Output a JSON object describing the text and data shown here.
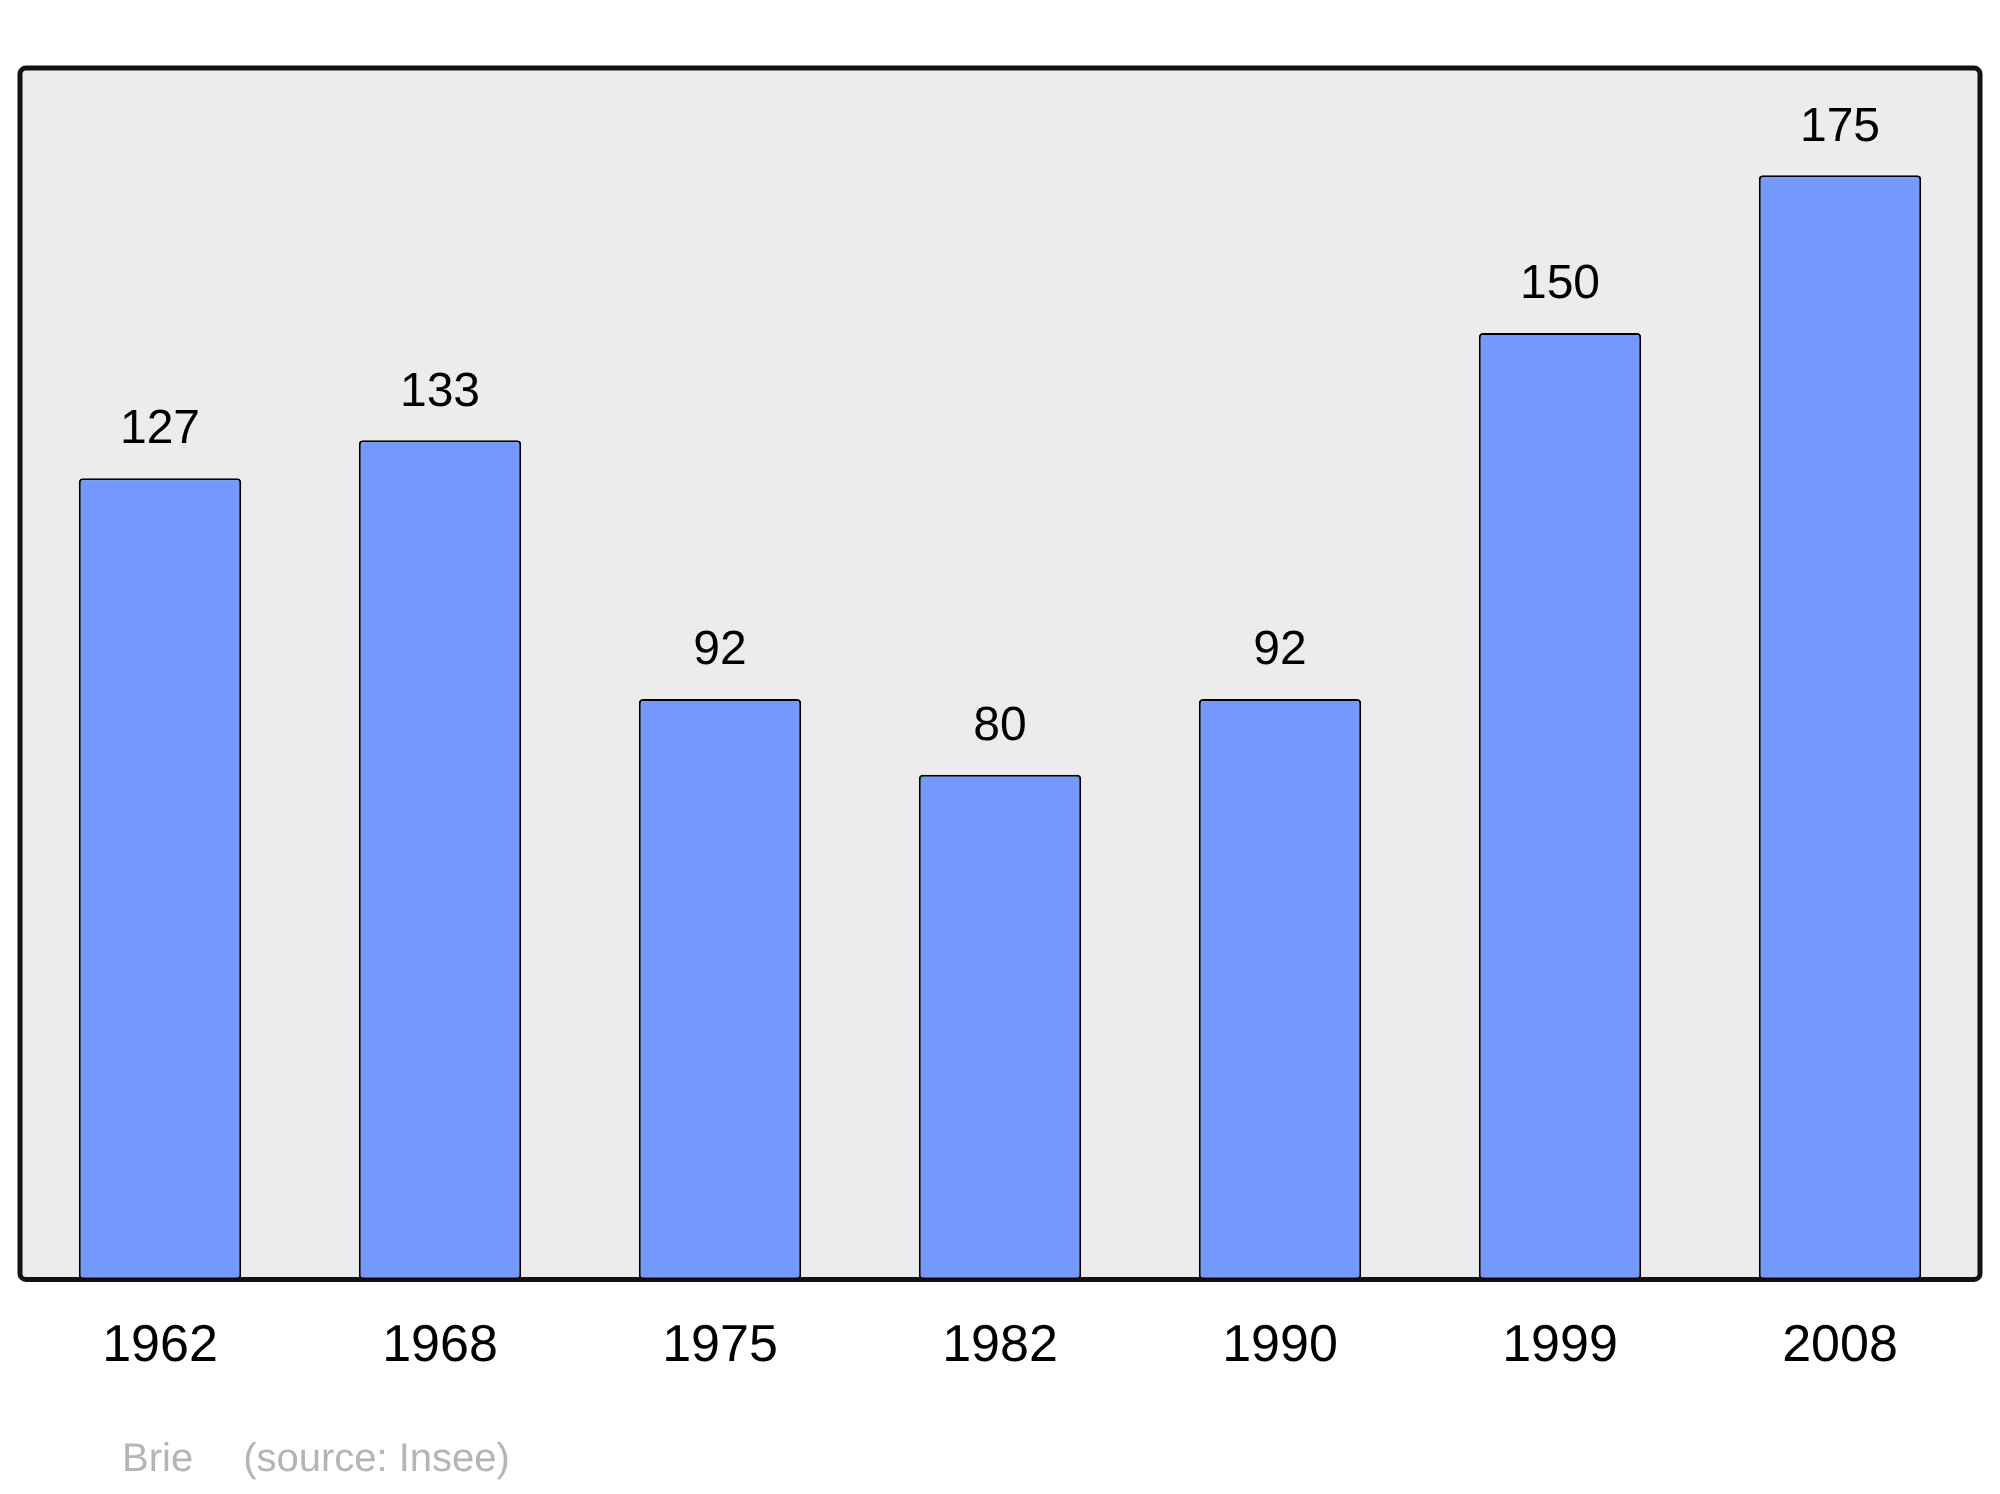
{
  "chart_data": {
    "type": "bar",
    "categories": [
      "1962",
      "1968",
      "1975",
      "1982",
      "1990",
      "1999",
      "2008"
    ],
    "values": [
      127,
      133,
      92,
      80,
      92,
      150,
      175
    ],
    "color": "#7399ff",
    "ylim": [
      0,
      192
    ],
    "data_labels": true,
    "grid": false,
    "legend": false,
    "annotations": [
      "Brie",
      "(source: Insee)"
    ]
  }
}
